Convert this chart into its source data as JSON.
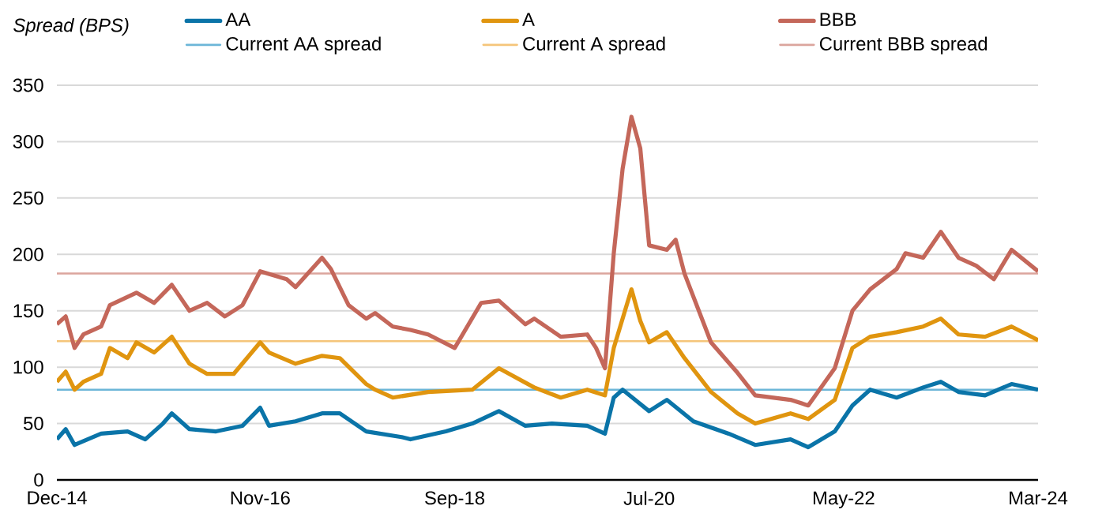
{
  "chart_data": {
    "type": "line",
    "ylabel": "Spread (BPS)",
    "xlim": [
      "2014-12",
      "2024-03"
    ],
    "xticks": [
      {
        "value": "2014-12",
        "label": "Dec-14"
      },
      {
        "value": "2016-11",
        "label": "Nov-16"
      },
      {
        "value": "2018-09",
        "label": "Sep-18"
      },
      {
        "value": "2020-07",
        "label": "Jul-20"
      },
      {
        "value": "2022-05",
        "label": "May-22"
      },
      {
        "value": "2024-03",
        "label": "Mar-24"
      }
    ],
    "ylim": [
      0,
      350
    ],
    "yticks": [
      0,
      50,
      100,
      150,
      200,
      250,
      300,
      350
    ],
    "grid": "y",
    "legend": "top",
    "series": [
      {
        "name": "AA",
        "color": "#0a74a8",
        "x": [
          "2014-12",
          "2015-01",
          "2015-02",
          "2015-05",
          "2015-08",
          "2015-10",
          "2015-12",
          "2016-01",
          "2016-03",
          "2016-06",
          "2016-09",
          "2016-11",
          "2016-12",
          "2017-03",
          "2017-06",
          "2017-08",
          "2017-11",
          "2018-03",
          "2018-04",
          "2018-08",
          "2018-11",
          "2019-02",
          "2019-05",
          "2019-08",
          "2019-12",
          "2020-02",
          "2020-03",
          "2020-04",
          "2020-07",
          "2020-09",
          "2020-12",
          "2021-04",
          "2021-07",
          "2021-11",
          "2022-01",
          "2022-04",
          "2022-06",
          "2022-08",
          "2022-11",
          "2023-02",
          "2023-04",
          "2023-06",
          "2023-09",
          "2023-12",
          "2024-03"
        ],
        "values": [
          36,
          45,
          31,
          41,
          43,
          36,
          50,
          59,
          45,
          43,
          48,
          64,
          48,
          52,
          59,
          59,
          43,
          38,
          36,
          43,
          50,
          61,
          48,
          50,
          48,
          41,
          73,
          80,
          61,
          71,
          52,
          41,
          31,
          36,
          29,
          43,
          66,
          80,
          73,
          82,
          87,
          78,
          75,
          85,
          80
        ]
      },
      {
        "name": "A",
        "color": "#e0950f",
        "x": [
          "2014-12",
          "2015-01",
          "2015-02",
          "2015-03",
          "2015-05",
          "2015-06",
          "2015-08",
          "2015-09",
          "2015-11",
          "2016-01",
          "2016-03",
          "2016-05",
          "2016-08",
          "2016-11",
          "2016-12",
          "2017-03",
          "2017-06",
          "2017-08",
          "2017-11",
          "2017-12",
          "2018-02",
          "2018-06",
          "2018-11",
          "2019-02",
          "2019-06",
          "2019-09",
          "2019-12",
          "2020-02",
          "2020-03",
          "2020-05",
          "2020-06",
          "2020-07",
          "2020-09",
          "2020-11",
          "2021-02",
          "2021-05",
          "2021-07",
          "2021-11",
          "2022-01",
          "2022-04",
          "2022-06",
          "2022-08",
          "2022-11",
          "2023-02",
          "2023-04",
          "2023-06",
          "2023-09",
          "2023-12",
          "2024-03"
        ],
        "values": [
          87,
          96,
          80,
          87,
          94,
          117,
          108,
          122,
          113,
          127,
          103,
          94,
          94,
          122,
          113,
          103,
          110,
          108,
          85,
          80,
          73,
          78,
          80,
          99,
          82,
          73,
          80,
          75,
          117,
          169,
          141,
          122,
          131,
          108,
          78,
          59,
          50,
          59,
          54,
          71,
          117,
          127,
          131,
          136,
          143,
          129,
          127,
          136,
          124
        ]
      },
      {
        "name": "BBB",
        "color": "#c4675a",
        "x": [
          "2014-12",
          "2015-01",
          "2015-02",
          "2015-03",
          "2015-05",
          "2015-06",
          "2015-09",
          "2015-11",
          "2016-01",
          "2016-03",
          "2016-05",
          "2016-07",
          "2016-09",
          "2016-11",
          "2017-02",
          "2017-03",
          "2017-06",
          "2017-07",
          "2017-09",
          "2017-11",
          "2017-12",
          "2018-02",
          "2018-04",
          "2018-06",
          "2018-09",
          "2018-12",
          "2019-02",
          "2019-05",
          "2019-06",
          "2019-09",
          "2019-12",
          "2020-01",
          "2020-02",
          "2020-03",
          "2020-04",
          "2020-05",
          "2020-06",
          "2020-07",
          "2020-09",
          "2020-10",
          "2020-11",
          "2021-02",
          "2021-05",
          "2021-07",
          "2021-11",
          "2022-01",
          "2022-04",
          "2022-06",
          "2022-08",
          "2022-11",
          "2022-12",
          "2023-02",
          "2023-04",
          "2023-06",
          "2023-08",
          "2023-10",
          "2023-12",
          "2024-03"
        ],
        "values": [
          138,
          145,
          117,
          129,
          136,
          155,
          166,
          157,
          173,
          150,
          157,
          145,
          155,
          185,
          178,
          171,
          197,
          187,
          155,
          143,
          148,
          136,
          133,
          129,
          117,
          157,
          159,
          138,
          143,
          127,
          129,
          117,
          99,
          201,
          276,
          322,
          294,
          208,
          204,
          213,
          183,
          122,
          95,
          75,
          71,
          66,
          99,
          150,
          169,
          187,
          201,
          197,
          220,
          197,
          190,
          178,
          204,
          185
        ]
      }
    ],
    "ref_lines": [
      {
        "axis": "y",
        "value": 80,
        "label": "Current AA spread",
        "color": "#6cb6d8"
      },
      {
        "axis": "y",
        "value": 123,
        "label": "Current A spread",
        "color": "#f5c57a"
      },
      {
        "axis": "y",
        "value": 183,
        "label": "Current BBB spread",
        "color": "#dba59d"
      }
    ]
  }
}
